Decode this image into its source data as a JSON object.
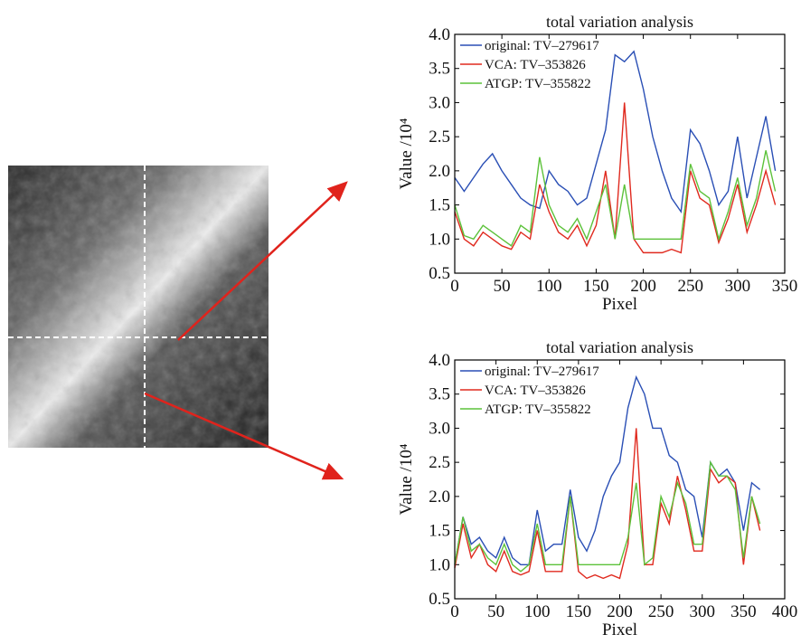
{
  "chart_data": [
    {
      "type": "line",
      "title": "total variation analysis",
      "x_label": "Pixel",
      "y_label": "Value /10⁴",
      "x": [
        0,
        10,
        20,
        30,
        40,
        50,
        60,
        70,
        80,
        90,
        100,
        110,
        120,
        130,
        140,
        150,
        160,
        170,
        180,
        190,
        200,
        210,
        220,
        230,
        240,
        250,
        260,
        270,
        280,
        290,
        300,
        310,
        320,
        330,
        340
      ],
      "series": [
        {
          "name": "original: TV–279617",
          "color": "#2a4fb5",
          "values": [
            1.9,
            1.7,
            1.9,
            2.1,
            2.25,
            2.0,
            1.8,
            1.6,
            1.5,
            1.45,
            2.0,
            1.8,
            1.7,
            1.5,
            1.6,
            2.1,
            2.6,
            3.7,
            3.6,
            3.75,
            3.2,
            2.5,
            2.0,
            1.6,
            1.4,
            2.6,
            2.4,
            2.0,
            1.5,
            1.7,
            2.5,
            1.6,
            2.2,
            2.8,
            2.0
          ]
        },
        {
          "name": "VCA: TV–353826",
          "color": "#e02a1f",
          "values": [
            1.4,
            1.0,
            0.9,
            1.1,
            1.0,
            0.9,
            0.85,
            1.1,
            1.0,
            1.8,
            1.4,
            1.1,
            1.0,
            1.2,
            0.9,
            1.2,
            2.0,
            1.0,
            3.0,
            1.0,
            0.8,
            0.8,
            0.8,
            0.85,
            0.8,
            2.0,
            1.6,
            1.5,
            0.95,
            1.3,
            1.8,
            1.1,
            1.5,
            2.0,
            1.5
          ]
        },
        {
          "name": "ATGP: TV–355822",
          "color": "#5cc23a",
          "values": [
            1.5,
            1.05,
            1.0,
            1.2,
            1.1,
            1.0,
            0.9,
            1.2,
            1.1,
            2.2,
            1.5,
            1.2,
            1.1,
            1.3,
            1.0,
            1.4,
            1.8,
            1.0,
            1.8,
            1.0,
            1.0,
            1.0,
            1.0,
            1.0,
            1.0,
            2.1,
            1.7,
            1.6,
            1.0,
            1.4,
            1.9,
            1.2,
            1.6,
            2.3,
            1.7
          ]
        }
      ],
      "xlim": [
        0,
        350
      ],
      "xticks": [
        0,
        50,
        100,
        150,
        200,
        250,
        300,
        350
      ],
      "ylim": [
        0.5,
        4.0
      ],
      "yticks": [
        0.5,
        {
          "value": 1.0,
          "label": "1.0"
        },
        1.5,
        {
          "value": 2.0,
          "label": "2.0"
        },
        2.5,
        {
          "value": 3.0,
          "label": "3.0"
        },
        3.5,
        {
          "value": 4.0,
          "label": "4.0"
        }
      ],
      "legend": "upper left"
    },
    {
      "type": "line",
      "title": "total variation analysis",
      "x_label": "Pixel",
      "y_label": "Value /10⁴",
      "x": [
        0,
        10,
        20,
        30,
        40,
        50,
        60,
        70,
        80,
        90,
        100,
        110,
        120,
        130,
        140,
        150,
        160,
        170,
        180,
        190,
        200,
        210,
        220,
        230,
        240,
        250,
        260,
        270,
        280,
        290,
        300,
        310,
        320,
        330,
        340,
        350,
        360,
        370
      ],
      "series": [
        {
          "name": "original: TV–279617",
          "color": "#2a4fb5",
          "values": [
            1.0,
            1.7,
            1.3,
            1.4,
            1.2,
            1.1,
            1.4,
            1.1,
            1.0,
            1.0,
            1.8,
            1.2,
            1.3,
            1.3,
            2.1,
            1.4,
            1.2,
            1.5,
            2.0,
            2.3,
            2.5,
            3.3,
            3.75,
            3.5,
            3.0,
            3.0,
            2.6,
            2.5,
            2.1,
            2.0,
            1.4,
            2.5,
            2.3,
            2.4,
            2.2,
            1.5,
            2.2,
            2.1
          ]
        },
        {
          "name": "VCA: TV–353826",
          "color": "#e02a1f",
          "values": [
            0.95,
            1.6,
            1.1,
            1.3,
            1.0,
            0.9,
            1.2,
            0.9,
            0.85,
            0.9,
            1.5,
            0.9,
            0.9,
            0.9,
            2.0,
            0.9,
            0.8,
            0.85,
            0.8,
            0.85,
            0.8,
            1.3,
            3.0,
            1.0,
            1.0,
            1.9,
            1.6,
            2.3,
            1.8,
            1.2,
            1.2,
            2.4,
            2.2,
            2.3,
            2.2,
            1.0,
            2.0,
            1.5
          ]
        },
        {
          "name": "ATGP: TV–355822",
          "color": "#5cc23a",
          "values": [
            1.0,
            1.7,
            1.2,
            1.3,
            1.1,
            1.0,
            1.3,
            1.0,
            0.9,
            1.0,
            1.6,
            1.0,
            1.0,
            1.0,
            2.0,
            1.0,
            1.0,
            1.0,
            1.0,
            1.0,
            1.0,
            1.4,
            2.2,
            1.0,
            1.1,
            2.0,
            1.7,
            2.2,
            1.9,
            1.3,
            1.3,
            2.5,
            2.3,
            2.3,
            2.1,
            1.1,
            2.0,
            1.6
          ]
        }
      ],
      "xlim": [
        0,
        400
      ],
      "xticks": [
        0,
        50,
        100,
        150,
        200,
        250,
        300,
        350,
        400
      ],
      "ylim": [
        0.5,
        4.0
      ],
      "yticks": [
        0.5,
        {
          "value": 1.0,
          "label": "1.0"
        },
        1.5,
        {
          "value": 2.0,
          "label": "2.0"
        },
        2.5,
        {
          "value": 3.0,
          "label": "3.0"
        },
        3.5,
        {
          "value": 4.0,
          "label": "4.0"
        }
      ],
      "legend": "upper left"
    }
  ]
}
